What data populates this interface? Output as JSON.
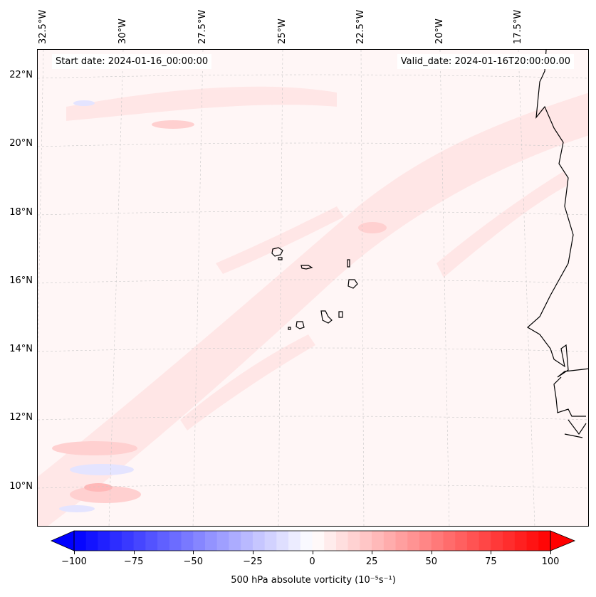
{
  "map": {
    "start_date": "Start date: 2024-01-16_00:00:00",
    "valid_date": "Valid_date: 2024-01-16T20:00:00.00",
    "lon_labels": [
      "32.5°W",
      "30°W",
      "27.5°W",
      "25°W",
      "22.5°W",
      "20°W",
      "17.5°W"
    ],
    "lat_labels": [
      "22°N",
      "20°N",
      "18°N",
      "16°N",
      "14°N",
      "12°N",
      "10°N"
    ]
  },
  "colorbar": {
    "label": "500 hPa absolute vorticity (10⁻⁵s⁻¹)",
    "ticks": [
      "−100",
      "−75",
      "−50",
      "−25",
      "0",
      "25",
      "50",
      "75",
      "100"
    ],
    "range": [
      -100,
      100
    ],
    "levels": 40,
    "colors": {
      "min": "#0000ff",
      "mid": "#ffffff",
      "max": "#ff0000"
    }
  }
}
